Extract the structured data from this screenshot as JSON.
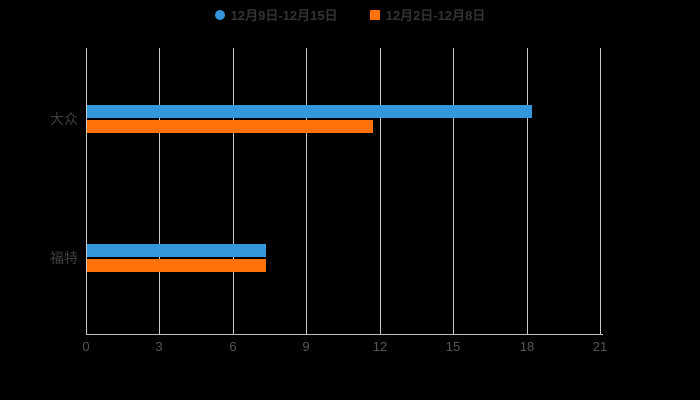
{
  "chart_data": {
    "type": "bar",
    "orientation": "horizontal",
    "title": "",
    "xlabel": "",
    "ylabel": "",
    "categories": [
      "大众",
      "福特"
    ],
    "series": [
      {
        "name": "12月9日-12月15日",
        "color": "#3398DB",
        "marker": "circle",
        "values": [
          18.2,
          7.3
        ]
      },
      {
        "name": "12月2日-12月8日",
        "color": "#FF7109",
        "marker": "square",
        "values": [
          11.7,
          7.3
        ]
      }
    ],
    "xlim": [
      0,
      21
    ],
    "x_ticks": [
      0,
      3,
      6,
      9,
      12,
      15,
      18,
      21
    ],
    "grid": true,
    "legend_position": "top-center"
  },
  "colors": {
    "background": "#000000",
    "gridline": "#c9c9c9",
    "axis_line": "#c0c0c0",
    "tick_label": "#565656",
    "category_label": "#3f3f3f",
    "legend_text": "#333333"
  }
}
